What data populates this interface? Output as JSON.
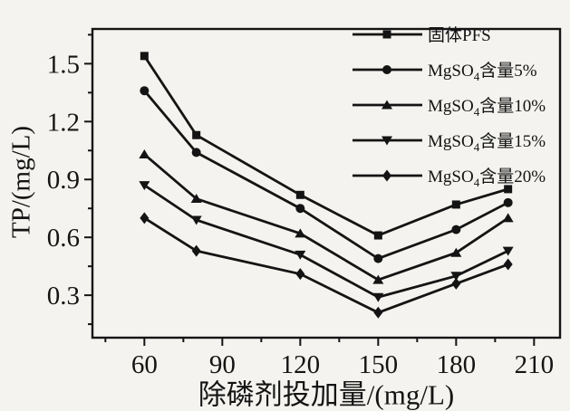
{
  "figure": {
    "background": "#f4f3f0",
    "ink": "#141414"
  },
  "chart_data": {
    "type": "line",
    "title": "",
    "xlabel": "除磷剂投加量/(mg/L)",
    "ylabel": "TP/(mg/L)",
    "x": [
      60,
      80,
      120,
      150,
      180,
      200
    ],
    "xlim": [
      40,
      220
    ],
    "ylim": [
      0.08,
      1.68
    ],
    "x_major_ticks": [
      60,
      90,
      120,
      150,
      180,
      210
    ],
    "x_minor_ticks": [
      45,
      75,
      105,
      135,
      165,
      195
    ],
    "y_major_ticks": [
      0.3,
      0.6,
      0.9,
      1.2,
      1.5
    ],
    "y_minor_ticks": [
      0.15,
      0.45,
      0.75,
      1.05,
      1.35,
      1.65
    ],
    "grid": false,
    "legend_position": "top-right",
    "series": [
      {
        "name": "固体PFS",
        "marker": "square",
        "values": [
          1.54,
          1.13,
          0.82,
          0.61,
          0.77,
          0.85
        ]
      },
      {
        "name": "MgSO4含量5%",
        "marker": "circle",
        "values": [
          1.36,
          1.04,
          0.75,
          0.49,
          0.64,
          0.78
        ]
      },
      {
        "name": "MgSO4含量10%",
        "marker": "triangle-up",
        "values": [
          1.03,
          0.8,
          0.62,
          0.38,
          0.52,
          0.7
        ]
      },
      {
        "name": "MgSO4含量15%",
        "marker": "triangle-down",
        "values": [
          0.87,
          0.69,
          0.51,
          0.29,
          0.4,
          0.53
        ]
      },
      {
        "name": "MgSO4含量20%",
        "marker": "diamond",
        "values": [
          0.7,
          0.53,
          0.41,
          0.21,
          0.36,
          0.46
        ]
      }
    ]
  },
  "legend": {
    "entries": [
      {
        "marker": "square",
        "pre": "固体PFS",
        "sub": "",
        "post": ""
      },
      {
        "marker": "circle",
        "pre": "MgSO",
        "sub": "4",
        "post": "含量5%"
      },
      {
        "marker": "triangle-up",
        "pre": "MgSO",
        "sub": "4",
        "post": "含量10%"
      },
      {
        "marker": "triangle-down",
        "pre": "MgSO",
        "sub": "4",
        "post": "含量15%"
      },
      {
        "marker": "diamond",
        "pre": "MgSO",
        "sub": "4",
        "post": "含量20%"
      }
    ]
  }
}
